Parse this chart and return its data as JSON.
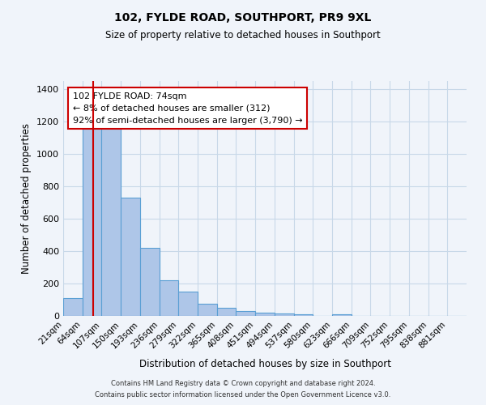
{
  "title": "102, FYLDE ROAD, SOUTHPORT, PR9 9XL",
  "subtitle": "Size of property relative to detached houses in Southport",
  "xlabel": "Distribution of detached houses by size in Southport",
  "ylabel": "Number of detached properties",
  "bin_labels": [
    "21sqm",
    "64sqm",
    "107sqm",
    "150sqm",
    "193sqm",
    "236sqm",
    "279sqm",
    "322sqm",
    "365sqm",
    "408sqm",
    "451sqm",
    "494sqm",
    "537sqm",
    "580sqm",
    "623sqm",
    "666sqm",
    "709sqm",
    "752sqm",
    "795sqm",
    "838sqm",
    "881sqm"
  ],
  "bar_heights": [
    110,
    1165,
    1165,
    730,
    420,
    220,
    150,
    75,
    50,
    30,
    20,
    15,
    10,
    0,
    10,
    0,
    0,
    0,
    0,
    0,
    0
  ],
  "bar_color": "#aec6e8",
  "bar_edge_color": "#5a9fd4",
  "background_color": "#f0f4fa",
  "grid_color": "#c8d8e8",
  "annotation_box_text": "102 FYLDE ROAD: 74sqm\n← 8% of detached houses are smaller (312)\n92% of semi-detached houses are larger (3,790) →",
  "annotation_box_color": "#ffffff",
  "annotation_box_edge_color": "#cc0000",
  "red_line_x": 1.55,
  "ylim": [
    0,
    1450
  ],
  "yticks": [
    0,
    200,
    400,
    600,
    800,
    1000,
    1200,
    1400
  ],
  "footer_line1": "Contains HM Land Registry data © Crown copyright and database right 2024.",
  "footer_line2": "Contains public sector information licensed under the Open Government Licence v3.0."
}
